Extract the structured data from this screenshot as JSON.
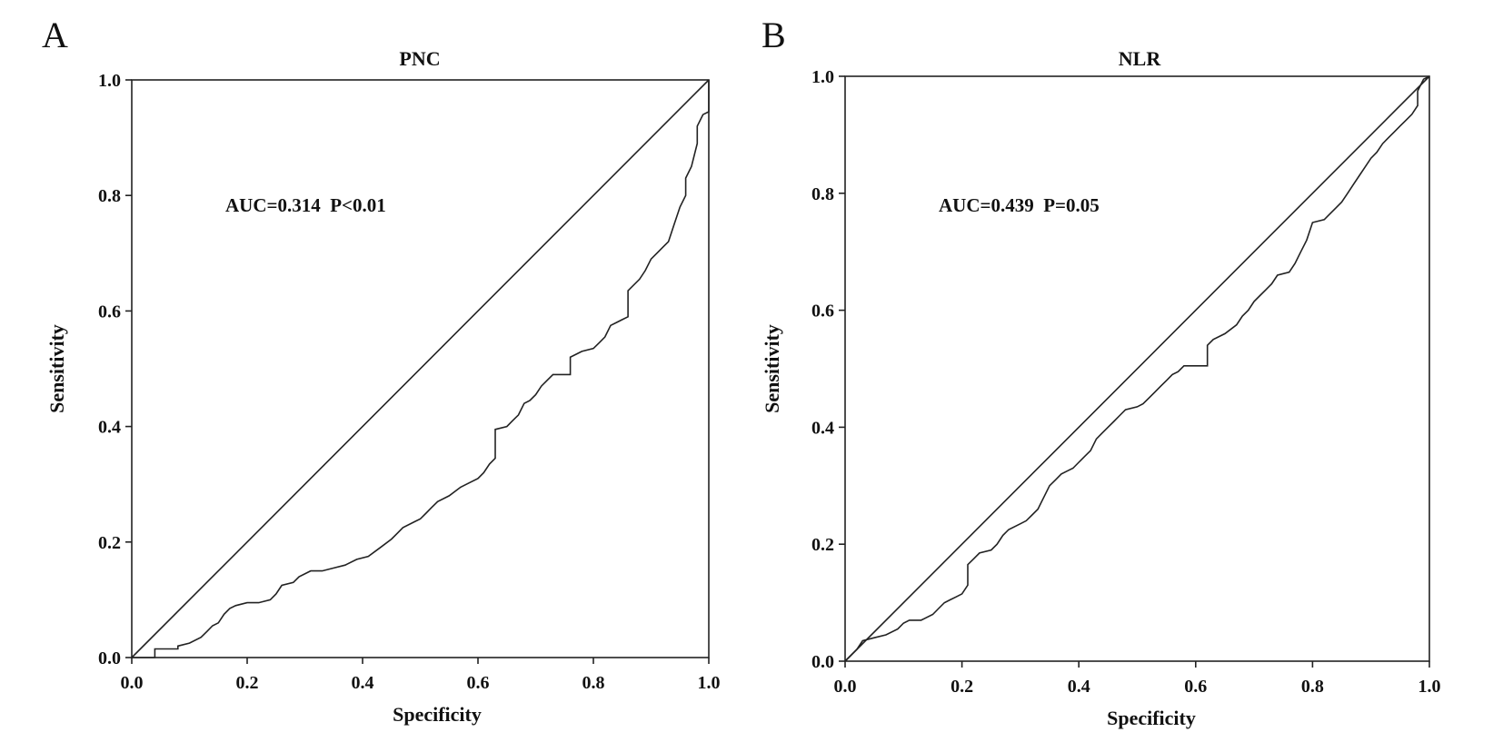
{
  "chart_data": [
    {
      "type": "line",
      "panel_letter": "A",
      "title": "PNC",
      "xlabel": "Specificity",
      "ylabel": "Sensitivity",
      "xlim": [
        0.0,
        1.0
      ],
      "ylim": [
        0.0,
        1.0
      ],
      "xticks": [
        "0.0",
        "0.2",
        "0.4",
        "0.6",
        "0.8",
        "1.0"
      ],
      "yticks": [
        "0.0",
        "0.2",
        "0.4",
        "0.6",
        "0.8",
        "1.0"
      ],
      "annotation": "AUC=0.314  P<0.01",
      "grid": false,
      "series": [
        {
          "values": [
            [
              0.0,
              0.0
            ],
            [
              0.04,
              0.0
            ],
            [
              0.04,
              0.015
            ],
            [
              0.08,
              0.015
            ],
            [
              0.08,
              0.02
            ],
            [
              0.1,
              0.025
            ],
            [
              0.12,
              0.035
            ],
            [
              0.13,
              0.045
            ],
            [
              0.14,
              0.055
            ],
            [
              0.15,
              0.06
            ],
            [
              0.16,
              0.075
            ],
            [
              0.17,
              0.085
            ],
            [
              0.18,
              0.09
            ],
            [
              0.2,
              0.095
            ],
            [
              0.22,
              0.095
            ],
            [
              0.24,
              0.1
            ],
            [
              0.25,
              0.11
            ],
            [
              0.26,
              0.125
            ],
            [
              0.28,
              0.13
            ],
            [
              0.29,
              0.14
            ],
            [
              0.31,
              0.15
            ],
            [
              0.33,
              0.15
            ],
            [
              0.35,
              0.155
            ],
            [
              0.37,
              0.16
            ],
            [
              0.39,
              0.17
            ],
            [
              0.41,
              0.175
            ],
            [
              0.43,
              0.19
            ],
            [
              0.45,
              0.205
            ],
            [
              0.46,
              0.215
            ],
            [
              0.47,
              0.225
            ],
            [
              0.49,
              0.235
            ],
            [
              0.5,
              0.24
            ],
            [
              0.51,
              0.25
            ],
            [
              0.52,
              0.26
            ],
            [
              0.53,
              0.27
            ],
            [
              0.55,
              0.28
            ],
            [
              0.57,
              0.295
            ],
            [
              0.58,
              0.3
            ],
            [
              0.6,
              0.31
            ],
            [
              0.61,
              0.32
            ],
            [
              0.62,
              0.335
            ],
            [
              0.63,
              0.345
            ],
            [
              0.63,
              0.395
            ],
            [
              0.65,
              0.4
            ],
            [
              0.66,
              0.41
            ],
            [
              0.67,
              0.42
            ],
            [
              0.68,
              0.44
            ],
            [
              0.69,
              0.445
            ],
            [
              0.7,
              0.455
            ],
            [
              0.71,
              0.47
            ],
            [
              0.72,
              0.48
            ],
            [
              0.73,
              0.49
            ],
            [
              0.76,
              0.49
            ],
            [
              0.76,
              0.52
            ],
            [
              0.78,
              0.53
            ],
            [
              0.8,
              0.535
            ],
            [
              0.81,
              0.545
            ],
            [
              0.82,
              0.555
            ],
            [
              0.83,
              0.575
            ],
            [
              0.84,
              0.58
            ],
            [
              0.85,
              0.585
            ],
            [
              0.86,
              0.59
            ],
            [
              0.86,
              0.635
            ],
            [
              0.88,
              0.655
            ],
            [
              0.89,
              0.67
            ],
            [
              0.9,
              0.69
            ],
            [
              0.91,
              0.7
            ],
            [
              0.92,
              0.71
            ],
            [
              0.93,
              0.72
            ],
            [
              0.94,
              0.75
            ],
            [
              0.95,
              0.78
            ],
            [
              0.96,
              0.8
            ],
            [
              0.96,
              0.83
            ],
            [
              0.97,
              0.85
            ],
            [
              0.98,
              0.89
            ],
            [
              0.98,
              0.92
            ],
            [
              0.99,
              0.94
            ],
            [
              1.0,
              0.945
            ],
            [
              1.0,
              1.0
            ]
          ]
        }
      ]
    },
    {
      "type": "line",
      "panel_letter": "B",
      "title": "NLR",
      "xlabel": "Specificity",
      "ylabel": "Sensitivity",
      "xlim": [
        0.0,
        1.0
      ],
      "ylim": [
        0.0,
        1.0
      ],
      "xticks": [
        "0.0",
        "0.2",
        "0.4",
        "0.6",
        "0.8",
        "1.0"
      ],
      "yticks": [
        "0.0",
        "0.2",
        "0.4",
        "0.6",
        "0.8",
        "1.0"
      ],
      "annotation": "AUC=0.439  P=0.05",
      "grid": false,
      "series": [
        {
          "values": [
            [
              0.0,
              0.0
            ],
            [
              0.01,
              0.01
            ],
            [
              0.02,
              0.02
            ],
            [
              0.03,
              0.035
            ],
            [
              0.05,
              0.04
            ],
            [
              0.07,
              0.045
            ],
            [
              0.09,
              0.055
            ],
            [
              0.1,
              0.065
            ],
            [
              0.11,
              0.07
            ],
            [
              0.13,
              0.07
            ],
            [
              0.15,
              0.08
            ],
            [
              0.16,
              0.09
            ],
            [
              0.17,
              0.1
            ],
            [
              0.18,
              0.105
            ],
            [
              0.19,
              0.11
            ],
            [
              0.2,
              0.115
            ],
            [
              0.21,
              0.13
            ],
            [
              0.21,
              0.165
            ],
            [
              0.22,
              0.175
            ],
            [
              0.23,
              0.185
            ],
            [
              0.25,
              0.19
            ],
            [
              0.26,
              0.2
            ],
            [
              0.27,
              0.215
            ],
            [
              0.28,
              0.225
            ],
            [
              0.3,
              0.235
            ],
            [
              0.31,
              0.24
            ],
            [
              0.32,
              0.25
            ],
            [
              0.33,
              0.26
            ],
            [
              0.34,
              0.28
            ],
            [
              0.35,
              0.3
            ],
            [
              0.36,
              0.31
            ],
            [
              0.37,
              0.32
            ],
            [
              0.38,
              0.325
            ],
            [
              0.39,
              0.33
            ],
            [
              0.4,
              0.34
            ],
            [
              0.41,
              0.35
            ],
            [
              0.42,
              0.36
            ],
            [
              0.43,
              0.38
            ],
            [
              0.44,
              0.39
            ],
            [
              0.45,
              0.4
            ],
            [
              0.46,
              0.41
            ],
            [
              0.47,
              0.42
            ],
            [
              0.48,
              0.43
            ],
            [
              0.5,
              0.435
            ],
            [
              0.51,
              0.44
            ],
            [
              0.52,
              0.45
            ],
            [
              0.53,
              0.46
            ],
            [
              0.54,
              0.47
            ],
            [
              0.55,
              0.48
            ],
            [
              0.56,
              0.49
            ],
            [
              0.57,
              0.495
            ],
            [
              0.58,
              0.505
            ],
            [
              0.62,
              0.505
            ],
            [
              0.62,
              0.54
            ],
            [
              0.63,
              0.55
            ],
            [
              0.65,
              0.56
            ],
            [
              0.67,
              0.575
            ],
            [
              0.68,
              0.59
            ],
            [
              0.69,
              0.6
            ],
            [
              0.7,
              0.615
            ],
            [
              0.71,
              0.625
            ],
            [
              0.72,
              0.635
            ],
            [
              0.73,
              0.645
            ],
            [
              0.74,
              0.66
            ],
            [
              0.76,
              0.665
            ],
            [
              0.77,
              0.68
            ],
            [
              0.78,
              0.7
            ],
            [
              0.79,
              0.72
            ],
            [
              0.8,
              0.75
            ],
            [
              0.82,
              0.755
            ],
            [
              0.83,
              0.765
            ],
            [
              0.84,
              0.775
            ],
            [
              0.85,
              0.785
            ],
            [
              0.86,
              0.8
            ],
            [
              0.87,
              0.815
            ],
            [
              0.88,
              0.83
            ],
            [
              0.89,
              0.845
            ],
            [
              0.9,
              0.86
            ],
            [
              0.91,
              0.87
            ],
            [
              0.92,
              0.885
            ],
            [
              0.93,
              0.895
            ],
            [
              0.94,
              0.905
            ],
            [
              0.95,
              0.915
            ],
            [
              0.96,
              0.925
            ],
            [
              0.97,
              0.935
            ],
            [
              0.98,
              0.95
            ],
            [
              0.98,
              0.975
            ],
            [
              0.99,
              0.995
            ],
            [
              1.0,
              1.0
            ]
          ]
        }
      ]
    }
  ]
}
